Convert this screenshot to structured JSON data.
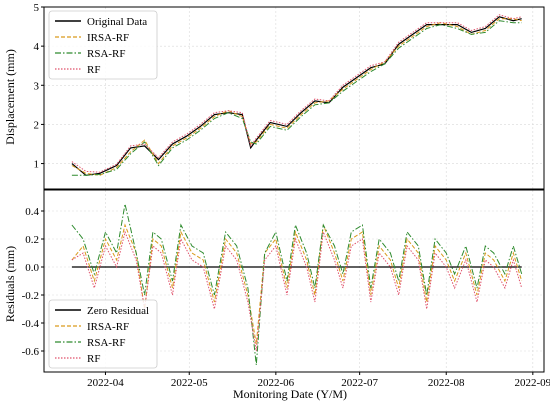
{
  "chart_data": [
    {
      "id": "displacement",
      "type": "line",
      "xlabel": "",
      "ylabel": "Displacement (mm)",
      "xlim": [
        "2022-03-10",
        "2022-09-05"
      ],
      "ylim": [
        0.35,
        5.0
      ],
      "yticks": [
        1,
        2,
        3,
        4,
        5
      ],
      "grid": true,
      "legend": "top-left",
      "x": [
        "2022-03-20",
        "2022-03-25",
        "2022-03-30",
        "2022-04-05",
        "2022-04-10",
        "2022-04-15",
        "2022-04-20",
        "2022-04-25",
        "2022-04-30",
        "2022-05-05",
        "2022-05-10",
        "2022-05-15",
        "2022-05-20",
        "2022-05-23",
        "2022-05-25",
        "2022-05-30",
        "2022-06-05",
        "2022-06-10",
        "2022-06-15",
        "2022-06-20",
        "2022-06-25",
        "2022-06-30",
        "2022-07-05",
        "2022-07-10",
        "2022-07-15",
        "2022-07-20",
        "2022-07-25",
        "2022-07-30",
        "2022-08-05",
        "2022-08-10",
        "2022-08-15",
        "2022-08-20",
        "2022-08-25",
        "2022-08-28"
      ],
      "series": [
        {
          "name": "Original Data",
          "color": "#000000",
          "dash": "",
          "width": 1.2,
          "values": [
            1.0,
            0.7,
            0.75,
            0.95,
            1.4,
            1.45,
            1.1,
            1.5,
            1.7,
            1.95,
            2.25,
            2.3,
            2.25,
            1.4,
            1.6,
            2.05,
            1.95,
            2.3,
            2.6,
            2.55,
            2.95,
            3.2,
            3.45,
            3.55,
            4.05,
            4.3,
            4.55,
            4.55,
            4.55,
            4.35,
            4.45,
            4.75,
            4.65,
            4.7
          ]
        },
        {
          "name": "IRSA-RF",
          "color": "#d99a1c",
          "dash": "4 2",
          "width": 1.0,
          "values": [
            0.95,
            0.75,
            0.7,
            0.9,
            1.3,
            1.6,
            1.0,
            1.45,
            1.65,
            1.9,
            2.2,
            2.35,
            2.2,
            1.5,
            1.55,
            2.0,
            1.9,
            2.25,
            2.55,
            2.6,
            2.9,
            3.15,
            3.4,
            3.6,
            4.0,
            4.25,
            4.5,
            4.6,
            4.5,
            4.3,
            4.4,
            4.7,
            4.7,
            4.65
          ]
        },
        {
          "name": "RSA-RF",
          "color": "#2e8b2e",
          "dash": "6 2 1.5 2",
          "width": 1.0,
          "values": [
            0.7,
            0.7,
            0.72,
            0.85,
            1.25,
            1.55,
            0.95,
            1.4,
            1.6,
            1.85,
            2.15,
            2.3,
            2.15,
            1.55,
            1.5,
            1.95,
            1.85,
            2.2,
            2.5,
            2.55,
            2.85,
            3.1,
            3.35,
            3.55,
            3.95,
            4.2,
            4.45,
            4.55,
            4.45,
            4.3,
            4.35,
            4.65,
            4.6,
            4.6
          ]
        },
        {
          "name": "RF",
          "color": "#e0526b",
          "dash": "1.5 1.5",
          "width": 1.0,
          "values": [
            1.05,
            0.8,
            0.78,
            0.98,
            1.45,
            1.5,
            1.15,
            1.55,
            1.75,
            2.0,
            2.3,
            2.35,
            2.3,
            1.45,
            1.65,
            2.1,
            2.0,
            2.35,
            2.65,
            2.6,
            3.0,
            3.25,
            3.5,
            3.6,
            4.1,
            4.35,
            4.6,
            4.6,
            4.6,
            4.4,
            4.5,
            4.8,
            4.7,
            4.75
          ]
        }
      ]
    },
    {
      "id": "residuals",
      "type": "line",
      "xlabel": "Monitoring Date (Y/M)",
      "ylabel": "Residuals (mm)",
      "xlim": [
        "2022-03-10",
        "2022-09-05"
      ],
      "ylim": [
        -0.75,
        0.55
      ],
      "yticks": [
        -0.6,
        -0.4,
        -0.2,
        0.0,
        0.2,
        0.4
      ],
      "xticks": [
        "2022-04-01",
        "2022-05-01",
        "2022-06-01",
        "2022-07-01",
        "2022-08-01",
        "2022-09-01"
      ],
      "xticklabels": [
        "2022-04",
        "2022-05",
        "2022-06",
        "2022-07",
        "2022-08",
        "2022-09"
      ],
      "grid": true,
      "legend": "bottom-left",
      "x": [
        "2022-03-20",
        "2022-03-24",
        "2022-03-28",
        "2022-04-01",
        "2022-04-05",
        "2022-04-08",
        "2022-04-12",
        "2022-04-15",
        "2022-04-18",
        "2022-04-21",
        "2022-04-25",
        "2022-04-28",
        "2022-05-02",
        "2022-05-06",
        "2022-05-10",
        "2022-05-14",
        "2022-05-18",
        "2022-05-22",
        "2022-05-25",
        "2022-05-28",
        "2022-06-01",
        "2022-06-05",
        "2022-06-08",
        "2022-06-12",
        "2022-06-15",
        "2022-06-18",
        "2022-06-22",
        "2022-06-25",
        "2022-06-28",
        "2022-07-02",
        "2022-07-05",
        "2022-07-08",
        "2022-07-12",
        "2022-07-15",
        "2022-07-18",
        "2022-07-22",
        "2022-07-25",
        "2022-07-28",
        "2022-08-01",
        "2022-08-04",
        "2022-08-08",
        "2022-08-12",
        "2022-08-15",
        "2022-08-18",
        "2022-08-22",
        "2022-08-25",
        "2022-08-28"
      ],
      "series": [
        {
          "name": "Zero Residual",
          "color": "#000000",
          "dash": "",
          "width": 1.2,
          "values": [
            0,
            0,
            0,
            0,
            0,
            0,
            0,
            0,
            0,
            0,
            0,
            0,
            0,
            0,
            0,
            0,
            0,
            0,
            0,
            0,
            0,
            0,
            0,
            0,
            0,
            0,
            0,
            0,
            0,
            0,
            0,
            0,
            0,
            0,
            0,
            0,
            0,
            0,
            0,
            0,
            0,
            0,
            0,
            0,
            0,
            0,
            0
          ]
        },
        {
          "name": "IRSA-RF",
          "color": "#d99a1c",
          "dash": "4 2",
          "width": 1.0,
          "values": [
            0.05,
            0.15,
            -0.1,
            0.2,
            0.05,
            0.3,
            0.1,
            -0.3,
            0.2,
            0.15,
            -0.15,
            0.25,
            0.1,
            0.05,
            -0.25,
            0.2,
            0.1,
            -0.2,
            -0.55,
            0.1,
            0.2,
            -0.15,
            0.25,
            0.05,
            -0.2,
            0.3,
            0.1,
            -0.1,
            0.2,
            0.25,
            -0.2,
            0.15,
            0.05,
            -0.15,
            0.2,
            0.1,
            -0.25,
            0.15,
            0.05,
            -0.1,
            0.1,
            -0.2,
            0.1,
            0.05,
            -0.1,
            0.1,
            -0.1
          ]
        },
        {
          "name": "RSA-RF",
          "color": "#2e8b2e",
          "dash": "6 2 1.5 2",
          "width": 1.0,
          "values": [
            0.3,
            0.2,
            -0.05,
            0.25,
            0.1,
            0.45,
            0.1,
            -0.2,
            0.25,
            0.2,
            -0.1,
            0.3,
            0.15,
            0.1,
            -0.2,
            0.25,
            0.15,
            -0.15,
            -0.7,
            0.1,
            0.25,
            -0.1,
            0.3,
            0.1,
            -0.15,
            0.3,
            0.15,
            -0.05,
            0.25,
            0.3,
            -0.15,
            0.2,
            0.1,
            -0.1,
            0.25,
            0.15,
            -0.2,
            0.2,
            0.1,
            -0.05,
            0.15,
            -0.15,
            0.15,
            0.1,
            -0.05,
            0.15,
            -0.05
          ]
        },
        {
          "name": "RF",
          "color": "#e0526b",
          "dash": "1.5 1.5",
          "width": 1.0,
          "values": [
            0.05,
            0.1,
            -0.15,
            0.15,
            0.0,
            0.25,
            0.05,
            -0.3,
            0.15,
            0.1,
            -0.2,
            0.2,
            0.05,
            0.0,
            -0.3,
            0.15,
            0.05,
            -0.25,
            -0.6,
            0.05,
            0.15,
            -0.2,
            0.2,
            0.0,
            -0.25,
            0.25,
            0.05,
            -0.15,
            0.15,
            0.2,
            -0.25,
            0.1,
            0.0,
            -0.2,
            0.15,
            0.05,
            -0.3,
            0.1,
            0.0,
            -0.15,
            0.05,
            -0.25,
            0.05,
            0.0,
            -0.15,
            0.05,
            -0.15
          ]
        }
      ]
    }
  ]
}
